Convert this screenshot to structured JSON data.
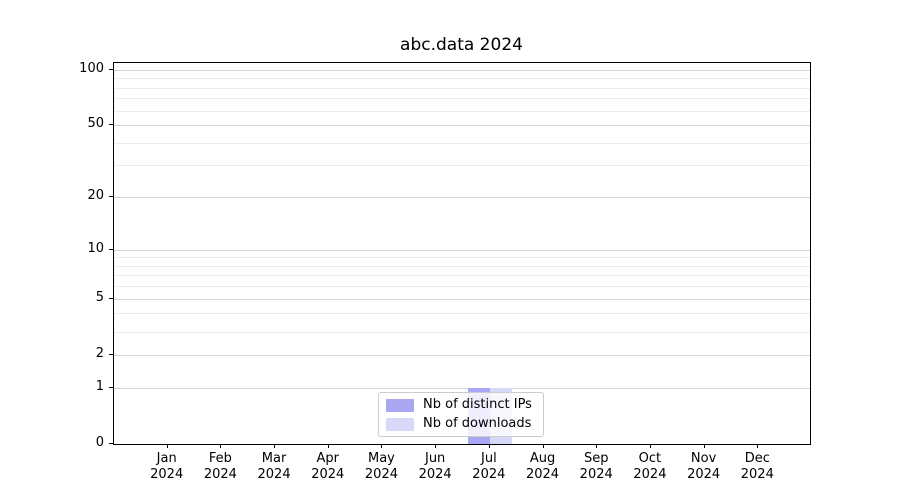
{
  "chart_data": {
    "type": "bar",
    "title": "abc.data 2024",
    "categories": [
      "Jan 2024",
      "Feb 2024",
      "Mar 2024",
      "Apr 2024",
      "May 2024",
      "Jun 2024",
      "Jul 2024",
      "Aug 2024",
      "Sep 2024",
      "Oct 2024",
      "Nov 2024",
      "Dec 2024"
    ],
    "series": [
      {
        "name": "Nb of distinct IPs",
        "color": "#a8a8f2",
        "values": [
          0,
          0,
          0,
          0,
          0,
          0,
          1,
          0,
          0,
          0,
          0,
          0
        ]
      },
      {
        "name": "Nb of downloads",
        "color": "#d8d8f8",
        "values": [
          0,
          0,
          0,
          0,
          0,
          0,
          1,
          0,
          0,
          0,
          0,
          0
        ]
      }
    ],
    "xlabel": "",
    "ylabel": "",
    "yscale": "log1p",
    "ylim": [
      0,
      110
    ],
    "yticks": [
      0,
      1,
      2,
      5,
      10,
      20,
      50,
      100
    ],
    "minor_yticks": [
      3,
      4,
      6,
      7,
      8,
      9,
      30,
      40,
      60,
      70,
      80,
      90
    ],
    "grid": "both",
    "legend_position": "lower center",
    "colors": {
      "axis": "#000000",
      "grid_major": "#d3d3d3",
      "grid_minor": "#ebebeb",
      "legend_border": "#cccccc"
    }
  }
}
